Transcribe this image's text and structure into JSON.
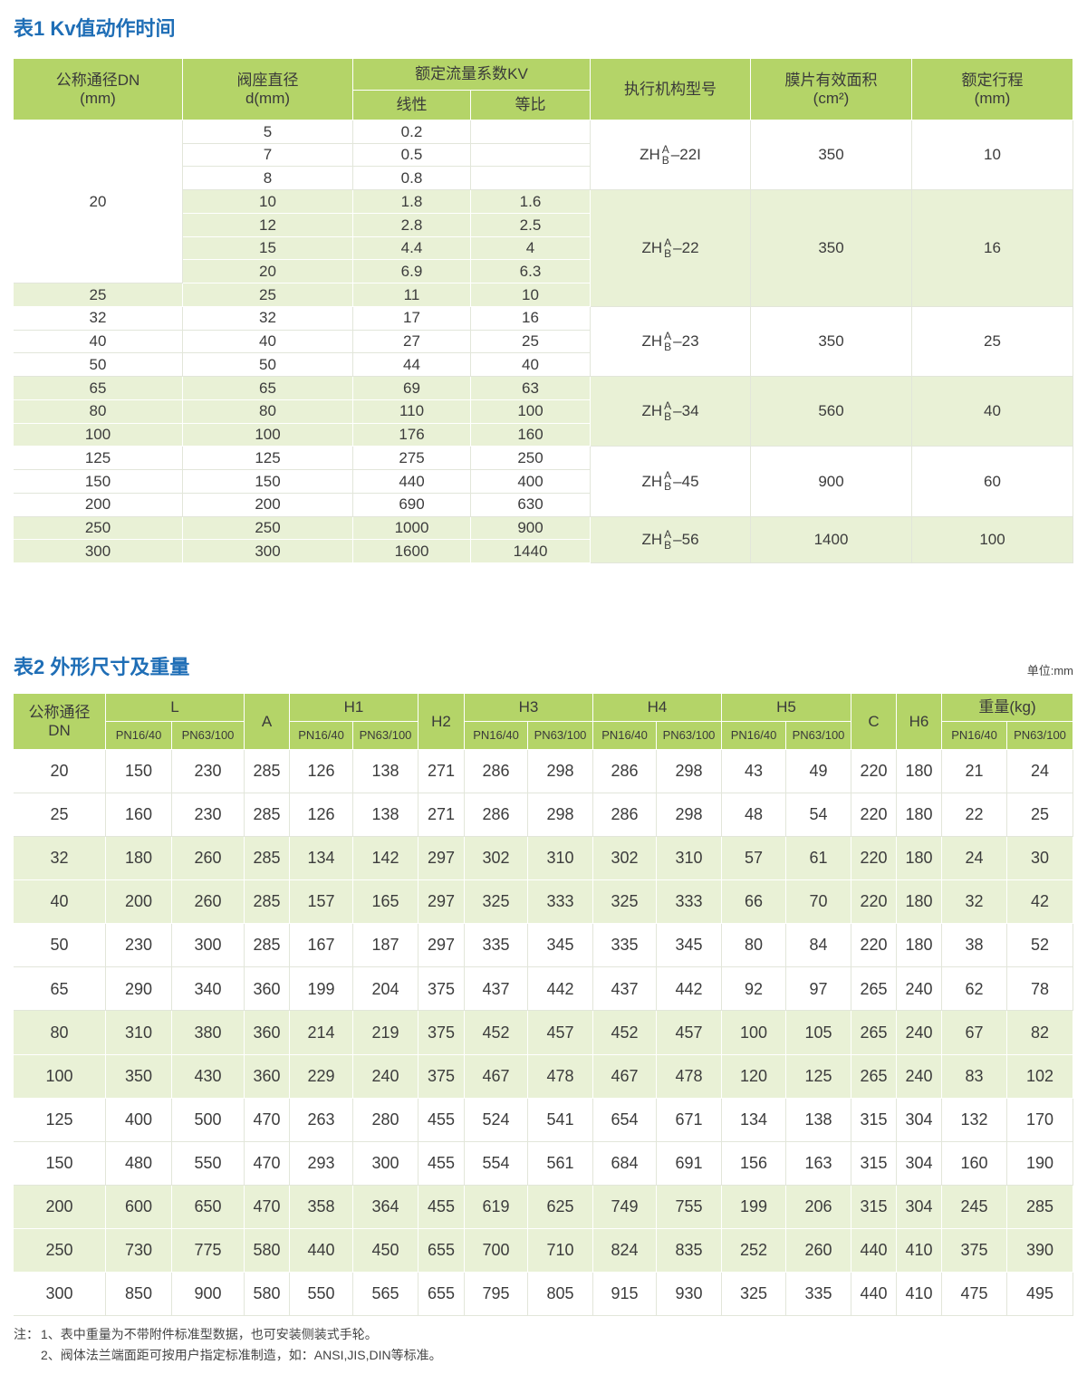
{
  "table1": {
    "title": "表1 Kv值动作时间",
    "columns": [
      {
        "lines": [
          "公称通径DN",
          "(mm)"
        ]
      },
      {
        "lines": [
          "阀座直径",
          "d(mm)"
        ]
      },
      {
        "label": "额定流量系数KV",
        "sub": [
          "线性",
          "等比"
        ]
      },
      {
        "label": "执行机构型号"
      },
      {
        "lines": [
          "膜片有效面积",
          "(cm²)"
        ]
      },
      {
        "lines": [
          "额定行程",
          "(mm)"
        ]
      }
    ],
    "groups": [
      {
        "model": {
          "prefix": "ZH",
          "upper": "A",
          "lower": "B",
          "suffix": "–22I"
        },
        "area": 350,
        "stroke": 10,
        "rows": [
          {
            "dn": 20,
            "seat": 5,
            "linear": 0.2
          },
          {
            "seat": 7,
            "linear": 0.5
          },
          {
            "seat": 8,
            "linear": 0.8
          }
        ]
      },
      {
        "model": {
          "prefix": "ZH",
          "upper": "A",
          "lower": "B",
          "suffix": "–22"
        },
        "area": 350,
        "stroke": 16,
        "rows": [
          {
            "seat": 10,
            "linear": 1.8,
            "equal": 1.6
          },
          {
            "seat": 12,
            "linear": 2.8,
            "equal": 2.5
          },
          {
            "seat": 15,
            "linear": 4.4,
            "equal": 4
          },
          {
            "seat": 20,
            "linear": 6.9,
            "equal": 6.3
          },
          {
            "dn": 25,
            "seat": 25,
            "linear": 11,
            "equal": 10
          }
        ]
      },
      {
        "model": {
          "prefix": "ZH",
          "upper": "A",
          "lower": "B",
          "suffix": "–23"
        },
        "area": 350,
        "stroke": 25,
        "rows": [
          {
            "dn": 32,
            "seat": 32,
            "linear": 17,
            "equal": 16
          },
          {
            "dn": 40,
            "seat": 40,
            "linear": 27,
            "equal": 25
          },
          {
            "dn": 50,
            "seat": 50,
            "linear": 44,
            "equal": 40
          }
        ]
      },
      {
        "model": {
          "prefix": "ZH",
          "upper": "A",
          "lower": "B",
          "suffix": "–34"
        },
        "area": 560,
        "stroke": 40,
        "rows": [
          {
            "dn": 65,
            "seat": 65,
            "linear": 69,
            "equal": 63
          },
          {
            "dn": 80,
            "seat": 80,
            "linear": 110,
            "equal": 100
          },
          {
            "dn": 100,
            "seat": 100,
            "linear": 176,
            "equal": 160
          }
        ]
      },
      {
        "model": {
          "prefix": "ZH",
          "upper": "A",
          "lower": "B",
          "suffix": "–45"
        },
        "area": 900,
        "stroke": 60,
        "rows": [
          {
            "dn": 125,
            "seat": 125,
            "linear": 275,
            "equal": 250
          },
          {
            "dn": 150,
            "seat": 150,
            "linear": 440,
            "equal": 400
          },
          {
            "dn": 200,
            "seat": 200,
            "linear": 690,
            "equal": 630
          }
        ]
      },
      {
        "model": {
          "prefix": "ZH",
          "upper": "A",
          "lower": "B",
          "suffix": "–56"
        },
        "area": 1400,
        "stroke": 100,
        "rows": [
          {
            "dn": 250,
            "seat": 250,
            "linear": 1000,
            "equal": 900
          },
          {
            "dn": 300,
            "seat": 300,
            "linear": 1600,
            "equal": 1440
          }
        ]
      }
    ]
  },
  "table2": {
    "title": "表2 外形尺寸及重量",
    "unit": "单位:mm",
    "pressure_classes": [
      "PN16/40",
      "PN63/100"
    ],
    "columns": [
      {
        "lines": [
          "公称通径",
          "DN"
        ]
      },
      {
        "label": "L",
        "split": true
      },
      {
        "label": "A"
      },
      {
        "label": "H1",
        "split": true
      },
      {
        "label": "H2"
      },
      {
        "label": "H3",
        "split": true
      },
      {
        "label": "H4",
        "split": true
      },
      {
        "label": "H5",
        "split": true
      },
      {
        "label": "C"
      },
      {
        "label": "H6"
      },
      {
        "label": "重量(kg)",
        "split": true
      }
    ],
    "rows": [
      [
        20,
        150,
        230,
        285,
        126,
        138,
        271,
        286,
        298,
        286,
        298,
        43,
        49,
        220,
        180,
        21,
        24
      ],
      [
        25,
        160,
        230,
        285,
        126,
        138,
        271,
        286,
        298,
        286,
        298,
        48,
        54,
        220,
        180,
        22,
        25
      ],
      [
        32,
        180,
        260,
        285,
        134,
        142,
        297,
        302,
        310,
        302,
        310,
        57,
        61,
        220,
        180,
        24,
        30
      ],
      [
        40,
        200,
        260,
        285,
        157,
        165,
        297,
        325,
        333,
        325,
        333,
        66,
        70,
        220,
        180,
        32,
        42
      ],
      [
        50,
        230,
        300,
        285,
        167,
        187,
        297,
        335,
        345,
        335,
        345,
        80,
        84,
        220,
        180,
        38,
        52
      ],
      [
        65,
        290,
        340,
        360,
        199,
        204,
        375,
        437,
        442,
        437,
        442,
        92,
        97,
        265,
        240,
        62,
        78
      ],
      [
        80,
        310,
        380,
        360,
        214,
        219,
        375,
        452,
        457,
        452,
        457,
        100,
        105,
        265,
        240,
        67,
        82
      ],
      [
        100,
        350,
        430,
        360,
        229,
        240,
        375,
        467,
        478,
        467,
        478,
        120,
        125,
        265,
        240,
        83,
        102
      ],
      [
        125,
        400,
        500,
        470,
        263,
        280,
        455,
        524,
        541,
        654,
        671,
        134,
        138,
        315,
        304,
        132,
        170
      ],
      [
        150,
        480,
        550,
        470,
        293,
        300,
        455,
        554,
        561,
        684,
        691,
        156,
        163,
        315,
        304,
        160,
        190
      ],
      [
        200,
        600,
        650,
        470,
        358,
        364,
        455,
        619,
        625,
        749,
        755,
        199,
        206,
        315,
        304,
        245,
        285
      ],
      [
        250,
        730,
        775,
        580,
        440,
        450,
        655,
        700,
        710,
        824,
        835,
        252,
        260,
        440,
        410,
        375,
        390
      ],
      [
        300,
        850,
        900,
        580,
        550,
        565,
        655,
        795,
        805,
        915,
        930,
        325,
        335,
        440,
        410,
        475,
        495
      ]
    ]
  },
  "notes": {
    "label": "注：",
    "items": [
      "1、表中重量为不带附件标准型数据，也可安装侧装式手轮。",
      "2、阀体法兰端面距可按用户指定标准制造，如：ANSI,JIS,DIN等标准。"
    ]
  }
}
